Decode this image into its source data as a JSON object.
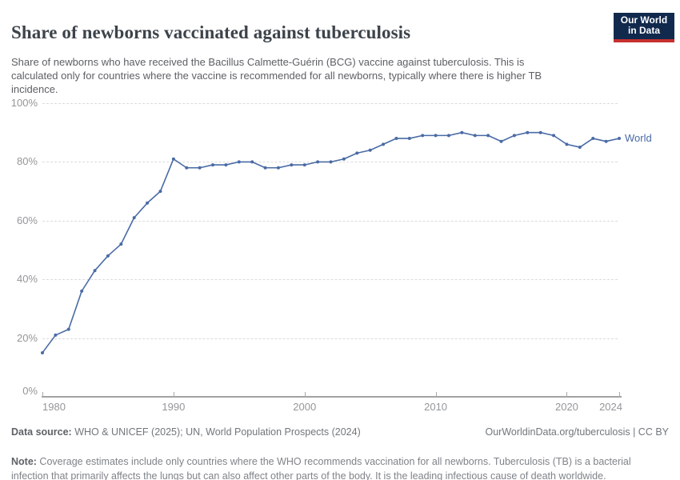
{
  "header": {
    "title": "Share of newborns vaccinated against tuberculosis",
    "subtitle": "Share of newborns who have received the Bacillus Calmette-Guérin (BCG) vaccine against tuberculosis. This is calculated only for countries where the vaccine is recommended for all newborns, typically where there is higher TB incidence.",
    "logo": {
      "line1": "Our World",
      "line2": "in Data"
    }
  },
  "colors": {
    "series_blue": "#4a6ba5",
    "logo_navy": "#11294d",
    "logo_red": "#c5302e",
    "gridline": "#dcdcdc",
    "axis_text": "#949699"
  },
  "chart_data": {
    "type": "line",
    "title": "Share of newborns vaccinated against tuberculosis",
    "xlabel": "",
    "ylabel": "",
    "xlim": [
      1980,
      2024
    ],
    "ylim": [
      0,
      100
    ],
    "grid": "horizontal-dashed",
    "legend_position": "end-of-line-label",
    "x_ticks": [
      {
        "value": 1980,
        "label": "1980"
      },
      {
        "value": 1990,
        "label": "1990"
      },
      {
        "value": 2000,
        "label": "2000"
      },
      {
        "value": 2010,
        "label": "2010"
      },
      {
        "value": 2020,
        "label": "2020"
      },
      {
        "value": 2024,
        "label": "2024"
      }
    ],
    "y_ticks": [
      {
        "value": 0,
        "label": "0%"
      },
      {
        "value": 20,
        "label": "20%"
      },
      {
        "value": 40,
        "label": "40%"
      },
      {
        "value": 60,
        "label": "60%"
      },
      {
        "value": 80,
        "label": "80%"
      },
      {
        "value": 100,
        "label": "100%"
      }
    ],
    "series": [
      {
        "name": "World",
        "color": "#4a6ba5",
        "x": [
          1980,
          1981,
          1982,
          1983,
          1984,
          1985,
          1986,
          1987,
          1988,
          1989,
          1990,
          1991,
          1992,
          1993,
          1994,
          1995,
          1996,
          1997,
          1998,
          1999,
          2000,
          2001,
          2002,
          2003,
          2004,
          2005,
          2006,
          2007,
          2008,
          2009,
          2010,
          2011,
          2012,
          2013,
          2014,
          2015,
          2016,
          2017,
          2018,
          2019,
          2020,
          2021,
          2022,
          2023,
          2024
        ],
        "values": [
          15,
          21,
          23,
          36,
          43,
          48,
          52,
          61,
          66,
          70,
          81,
          78,
          78,
          79,
          79,
          80,
          80,
          78,
          78,
          79,
          79,
          80,
          80,
          81,
          83,
          84,
          86,
          88,
          88,
          89,
          89,
          89,
          90,
          89,
          89,
          87,
          89,
          90,
          90,
          89,
          86,
          85,
          88,
          87,
          88
        ]
      }
    ]
  },
  "footer": {
    "datasource_label": "Data source:",
    "datasource_text": " WHO & UNICEF (2025); UN, World Population Prospects (2024)",
    "rights": "OurWorldinData.org/tuberculosis | CC BY",
    "note_label": "Note:",
    "note_text": " Coverage estimates include only countries where the WHO recommends vaccination for all newborns. Tuberculosis (TB) is a bacterial infection that primarily affects the lungs but can also affect other parts of the body. It is the leading infectious cause of death worldwide."
  }
}
